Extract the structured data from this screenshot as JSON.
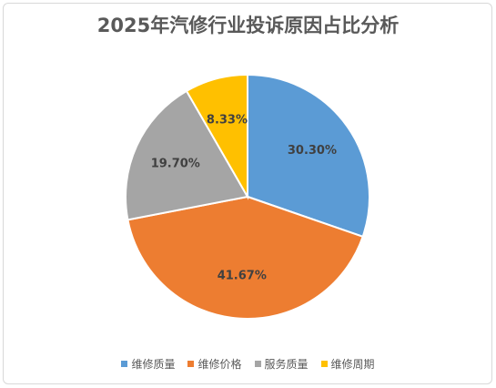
{
  "chart_data": {
    "type": "pie",
    "title": "2025年汽修行业投诉原因占比分析",
    "categories": [
      "维修质量",
      "维修价格",
      "服务质量",
      "维修周期"
    ],
    "values": [
      30.3,
      41.67,
      19.7,
      8.33
    ],
    "labels": [
      "30.30%",
      "41.67%",
      "19.70%",
      "8.33%"
    ],
    "colors": [
      "#5B9BD5",
      "#ED7D31",
      "#A5A5A5",
      "#FFC000"
    ],
    "legend_position": "bottom",
    "start_angle": "12 o'clock",
    "direction": "clockwise"
  }
}
